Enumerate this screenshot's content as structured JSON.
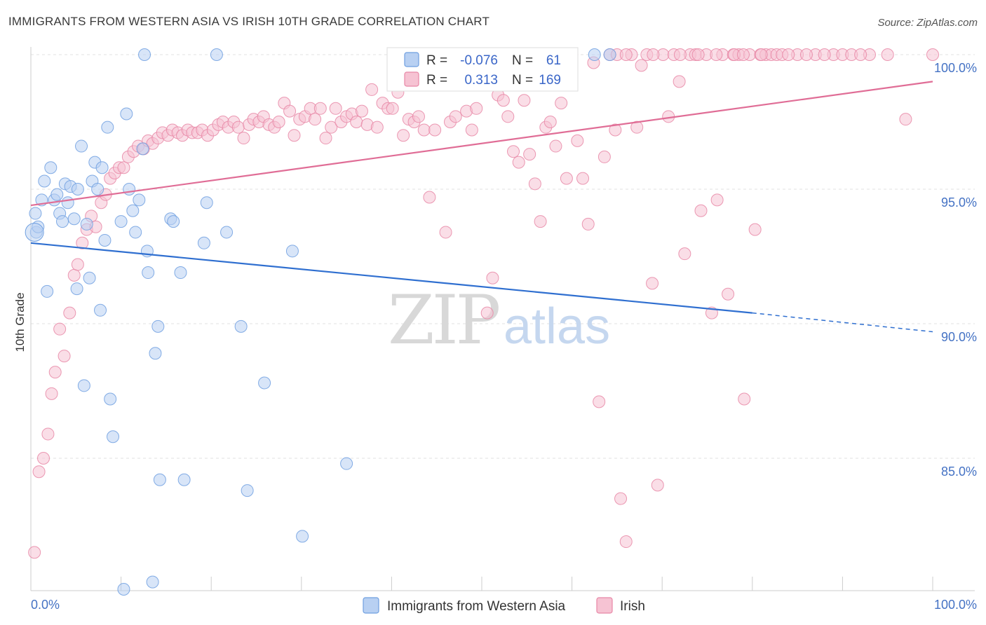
{
  "title": "IMMIGRANTS FROM WESTERN ASIA VS IRISH 10TH GRADE CORRELATION CHART",
  "source": "Source: ZipAtlas.com",
  "watermark": {
    "zip": "ZIP",
    "atlas": "atlas"
  },
  "colors": {
    "blue": "#6f9fe0",
    "blue_fill": "#b8d0f2",
    "blue_line": "#2f6fd0",
    "pink": "#e887a6",
    "pink_fill": "#f6c3d3",
    "pink_line": "#e06d96",
    "tick_text": "#4472c4"
  },
  "stats": {
    "r_label": "R =",
    "n_label": "N =",
    "blue_r": "-0.076",
    "blue_n": "61",
    "pink_r": "0.313",
    "pink_n": "169"
  },
  "chart_data": {
    "type": "scatter",
    "title": "IMMIGRANTS FROM WESTERN ASIA VS IRISH 10TH GRADE CORRELATION CHART",
    "xlabel": "",
    "ylabel": "10th Grade",
    "xlim": [
      0,
      100
    ],
    "ylim": [
      80,
      100.5
    ],
    "x_tick_labels": [
      "0.0%",
      "100.0%"
    ],
    "y_ticks": [
      85,
      90,
      95,
      100
    ],
    "y_tick_labels": [
      "85.0%",
      "90.0%",
      "95.0%",
      "100.0%"
    ],
    "grid": true,
    "legend_position": "bottom",
    "series": [
      {
        "name": "Immigrants from Western Asia",
        "color": "#6f9fe0",
        "trend": {
          "x": [
            0,
            80
          ],
          "y": [
            93.0,
            90.4
          ],
          "dashed_to": [
            100,
            89.7
          ]
        },
        "points": [
          [
            0.5,
            94.1
          ],
          [
            0.6,
            93.4
          ],
          [
            0.8,
            93.6
          ],
          [
            1.2,
            94.6
          ],
          [
            1.5,
            95.3
          ],
          [
            1.8,
            91.2
          ],
          [
            2.2,
            95.8
          ],
          [
            2.6,
            94.6
          ],
          [
            2.9,
            94.8
          ],
          [
            3.2,
            94.1
          ],
          [
            3.5,
            93.8
          ],
          [
            3.8,
            95.2
          ],
          [
            4.1,
            94.5
          ],
          [
            4.4,
            95.1
          ],
          [
            4.8,
            93.9
          ],
          [
            5.2,
            95.0
          ],
          [
            5.1,
            91.3
          ],
          [
            5.6,
            96.6
          ],
          [
            5.9,
            87.7
          ],
          [
            6.2,
            93.7
          ],
          [
            6.5,
            91.7
          ],
          [
            6.8,
            95.3
          ],
          [
            7.1,
            96.0
          ],
          [
            7.4,
            95.0
          ],
          [
            7.7,
            90.5
          ],
          [
            7.9,
            95.8
          ],
          [
            8.2,
            93.1
          ],
          [
            8.5,
            97.3
          ],
          [
            8.8,
            87.2
          ],
          [
            9.1,
            85.8
          ],
          [
            10.0,
            93.8
          ],
          [
            10.3,
            80.1
          ],
          [
            10.6,
            97.8
          ],
          [
            10.9,
            95.0
          ],
          [
            11.3,
            94.2
          ],
          [
            11.6,
            93.4
          ],
          [
            12.0,
            94.6
          ],
          [
            12.4,
            96.5
          ],
          [
            12.6,
            100.0
          ],
          [
            12.9,
            92.7
          ],
          [
            13.0,
            91.9
          ],
          [
            13.5,
            80.4
          ],
          [
            13.8,
            88.9
          ],
          [
            14.1,
            89.9
          ],
          [
            14.3,
            84.2
          ],
          [
            15.5,
            93.9
          ],
          [
            15.8,
            93.8
          ],
          [
            16.6,
            91.9
          ],
          [
            17.0,
            84.2
          ],
          [
            19.2,
            93.0
          ],
          [
            19.5,
            94.5
          ],
          [
            20.6,
            100.0
          ],
          [
            21.7,
            93.4
          ],
          [
            23.3,
            89.9
          ],
          [
            24.0,
            83.8
          ],
          [
            25.9,
            87.8
          ],
          [
            29.0,
            92.7
          ],
          [
            30.1,
            82.1
          ],
          [
            35.0,
            84.8
          ],
          [
            62.5,
            100.0
          ],
          [
            64.2,
            100.0
          ]
        ]
      },
      {
        "name": "Irish",
        "color": "#e887a6",
        "trend": {
          "x": [
            0,
            100
          ],
          "y": [
            94.4,
            99.0
          ]
        },
        "points": [
          [
            0.4,
            81.5
          ],
          [
            0.9,
            84.5
          ],
          [
            1.4,
            85.0
          ],
          [
            1.9,
            85.9
          ],
          [
            2.3,
            87.4
          ],
          [
            2.7,
            88.2
          ],
          [
            3.2,
            89.8
          ],
          [
            3.7,
            88.8
          ],
          [
            4.3,
            90.4
          ],
          [
            4.8,
            91.8
          ],
          [
            5.2,
            92.2
          ],
          [
            5.7,
            93.0
          ],
          [
            6.2,
            93.5
          ],
          [
            6.7,
            94.0
          ],
          [
            7.2,
            93.6
          ],
          [
            7.8,
            94.5
          ],
          [
            8.3,
            94.8
          ],
          [
            8.8,
            95.4
          ],
          [
            9.3,
            95.6
          ],
          [
            9.8,
            95.8
          ],
          [
            10.3,
            95.8
          ],
          [
            10.8,
            96.2
          ],
          [
            11.4,
            96.4
          ],
          [
            11.9,
            96.6
          ],
          [
            12.5,
            96.5
          ],
          [
            13.0,
            96.8
          ],
          [
            13.5,
            96.7
          ],
          [
            14.1,
            96.9
          ],
          [
            14.6,
            97.1
          ],
          [
            15.2,
            97.0
          ],
          [
            15.7,
            97.2
          ],
          [
            16.3,
            97.1
          ],
          [
            16.8,
            97.0
          ],
          [
            17.4,
            97.2
          ],
          [
            17.9,
            97.1
          ],
          [
            18.5,
            97.1
          ],
          [
            19.0,
            97.2
          ],
          [
            19.6,
            97.0
          ],
          [
            20.2,
            97.2
          ],
          [
            20.8,
            97.4
          ],
          [
            21.3,
            97.5
          ],
          [
            21.9,
            97.3
          ],
          [
            22.5,
            97.5
          ],
          [
            23.0,
            97.3
          ],
          [
            23.6,
            96.9
          ],
          [
            24.2,
            97.4
          ],
          [
            24.7,
            97.6
          ],
          [
            25.3,
            97.5
          ],
          [
            25.8,
            97.7
          ],
          [
            26.4,
            97.4
          ],
          [
            27.0,
            97.3
          ],
          [
            27.5,
            97.5
          ],
          [
            28.1,
            98.2
          ],
          [
            28.7,
            97.9
          ],
          [
            29.2,
            97.0
          ],
          [
            29.8,
            97.6
          ],
          [
            30.4,
            97.7
          ],
          [
            31.0,
            98.0
          ],
          [
            31.5,
            97.6
          ],
          [
            32.1,
            98.0
          ],
          [
            32.7,
            96.9
          ],
          [
            33.3,
            97.3
          ],
          [
            33.8,
            98.0
          ],
          [
            34.4,
            97.5
          ],
          [
            35.0,
            97.7
          ],
          [
            35.6,
            97.8
          ],
          [
            36.1,
            97.5
          ],
          [
            36.7,
            97.9
          ],
          [
            37.3,
            97.4
          ],
          [
            37.8,
            98.7
          ],
          [
            38.4,
            97.3
          ],
          [
            39.0,
            98.2
          ],
          [
            39.6,
            98.0
          ],
          [
            40.1,
            98.0
          ],
          [
            40.7,
            98.6
          ],
          [
            41.3,
            97.0
          ],
          [
            41.9,
            97.6
          ],
          [
            42.5,
            97.5
          ],
          [
            43.0,
            97.7
          ],
          [
            43.6,
            97.2
          ],
          [
            44.2,
            94.7
          ],
          [
            44.8,
            97.2
          ],
          [
            45.4,
            99.0
          ],
          [
            46.0,
            93.4
          ],
          [
            46.5,
            97.5
          ],
          [
            47.1,
            97.7
          ],
          [
            47.7,
            99.6
          ],
          [
            48.3,
            97.9
          ],
          [
            48.9,
            97.2
          ],
          [
            49.4,
            98.0
          ],
          [
            50.0,
            99.5
          ],
          [
            50.6,
            90.4
          ],
          [
            51.2,
            91.7
          ],
          [
            51.8,
            98.5
          ],
          [
            52.4,
            98.3
          ],
          [
            52.9,
            97.7
          ],
          [
            53.5,
            96.4
          ],
          [
            54.1,
            96.0
          ],
          [
            54.7,
            98.3
          ],
          [
            55.3,
            96.3
          ],
          [
            55.9,
            95.2
          ],
          [
            56.5,
            93.8
          ],
          [
            57.1,
            97.3
          ],
          [
            57.6,
            97.5
          ],
          [
            58.2,
            96.6
          ],
          [
            58.8,
            98.2
          ],
          [
            59.4,
            95.4
          ],
          [
            60.0,
            100.0
          ],
          [
            60.6,
            96.8
          ],
          [
            61.2,
            95.4
          ],
          [
            61.8,
            93.7
          ],
          [
            62.4,
            99.7
          ],
          [
            63.0,
            87.1
          ],
          [
            63.6,
            96.2
          ],
          [
            64.2,
            100.0
          ],
          [
            64.8,
            97.2
          ],
          [
            65.4,
            83.5
          ],
          [
            66.0,
            81.9
          ],
          [
            66.6,
            100.0
          ],
          [
            67.2,
            97.3
          ],
          [
            67.7,
            99.6
          ],
          [
            68.3,
            100.0
          ],
          [
            68.9,
            91.5
          ],
          [
            69.5,
            84.0
          ],
          [
            70.1,
            100.0
          ],
          [
            70.7,
            97.7
          ],
          [
            71.3,
            100.0
          ],
          [
            71.9,
            99.0
          ],
          [
            72.5,
            92.6
          ],
          [
            73.1,
            100.0
          ],
          [
            73.7,
            100.0
          ],
          [
            74.3,
            94.2
          ],
          [
            74.9,
            100.0
          ],
          [
            75.5,
            90.4
          ],
          [
            76.1,
            94.6
          ],
          [
            76.7,
            100.0
          ],
          [
            77.3,
            91.1
          ],
          [
            77.9,
            100.0
          ],
          [
            78.5,
            100.0
          ],
          [
            79.1,
            87.2
          ],
          [
            79.7,
            100.0
          ],
          [
            80.3,
            93.5
          ],
          [
            80.9,
            100.0
          ],
          [
            81.5,
            100.0
          ],
          [
            82.1,
            100.0
          ],
          [
            82.7,
            100.0
          ],
          [
            83.3,
            100.0
          ],
          [
            85.0,
            100.0
          ],
          [
            87.0,
            100.0
          ],
          [
            89.0,
            100.0
          ],
          [
            90.0,
            100.0
          ],
          [
            91.0,
            100.0
          ],
          [
            93.0,
            100.0
          ],
          [
            95.0,
            100.0
          ],
          [
            97.0,
            97.6
          ],
          [
            100.0,
            100.0
          ],
          [
            65.0,
            100.0
          ],
          [
            66.0,
            100.0
          ],
          [
            69.0,
            100.0
          ],
          [
            72.0,
            100.0
          ],
          [
            74.0,
            100.0
          ],
          [
            76.0,
            100.0
          ],
          [
            78.0,
            100.0
          ],
          [
            79.0,
            100.0
          ],
          [
            81.0,
            100.0
          ],
          [
            84.0,
            100.0
          ],
          [
            86.0,
            100.0
          ],
          [
            88.0,
            100.0
          ],
          [
            92.0,
            100.0
          ]
        ]
      }
    ]
  }
}
